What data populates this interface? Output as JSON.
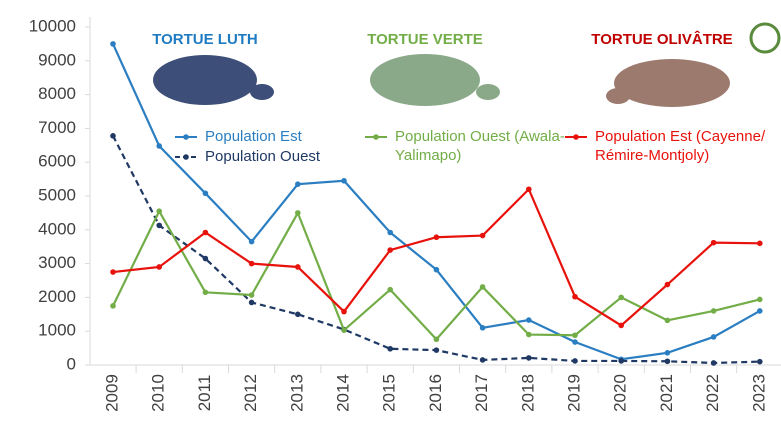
{
  "chart_data": {
    "type": "line",
    "annotations": [
      "TORTUE LUTH",
      "TORTUE VERTE",
      "TORTUE OLIVÂTRE"
    ],
    "annotation_colors": [
      "#1f7bc1",
      "#72ad47",
      "#c00000"
    ],
    "categories": [
      "2009",
      "2010",
      "2011",
      "2012",
      "2013",
      "2014",
      "2015",
      "2016",
      "2017",
      "2018",
      "2019",
      "2020",
      "2021",
      "2022",
      "2023"
    ],
    "series": [
      {
        "name": "Population Est",
        "color": "#2b7ec1",
        "dash": false,
        "values": [
          9500,
          6480,
          5080,
          3650,
          5350,
          5450,
          3920,
          2820,
          1100,
          1330,
          680,
          170,
          360,
          830,
          1600
        ]
      },
      {
        "name": "Population Ouest",
        "color": "#1f3864",
        "dash": true,
        "values": [
          6780,
          4130,
          3150,
          1850,
          1500,
          1050,
          480,
          440,
          150,
          210,
          120,
          120,
          110,
          60,
          100
        ]
      },
      {
        "name": "Population Ouest (Awala-Yalimapo)",
        "color": "#72ad47",
        "dash": false,
        "values": [
          1750,
          4550,
          2150,
          2070,
          4500,
          1030,
          2230,
          760,
          2310,
          900,
          880,
          2000,
          1320,
          1600,
          1940
        ]
      },
      {
        "name": "Population Est (Cayenne/ Rémire-Montjoly)",
        "color": "#e8120c",
        "dash": false,
        "values": [
          2750,
          2900,
          3920,
          3000,
          2900,
          1580,
          3400,
          3780,
          3830,
          5200,
          2020,
          1170,
          2380,
          3620,
          3600
        ]
      }
    ],
    "ylim": [
      0,
      10000
    ],
    "yticks": [
      0,
      1000,
      2000,
      3000,
      4000,
      5000,
      6000,
      7000,
      8000,
      9000,
      10000
    ],
    "grid": false
  }
}
